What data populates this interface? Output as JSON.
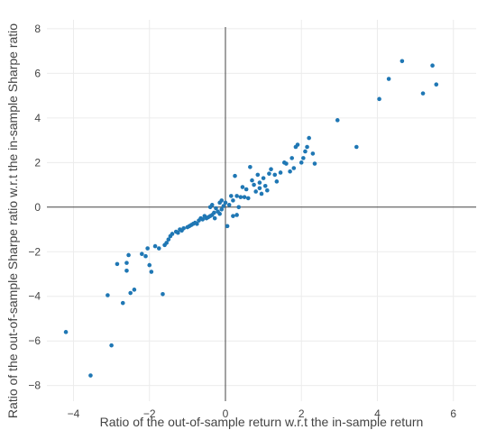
{
  "chart_data": {
    "type": "scatter",
    "xlabel": "Ratio of the out-of-sample return w.r.t the in-sample return",
    "ylabel": "Ratio of the out-of-sample Sharpe ratio w.r.t the in-sample Sharpe ratio",
    "xlim": [
      -4.7,
      6.6
    ],
    "ylim": [
      -8.7,
      8.4
    ],
    "xticks": [
      -4,
      -2,
      0,
      2,
      4,
      6
    ],
    "xtick_labels": [
      "−4",
      "−2",
      "0",
      "2",
      "4",
      "6"
    ],
    "yticks": [
      -8,
      -6,
      -4,
      -2,
      0,
      2,
      4,
      6,
      8
    ],
    "ytick_labels": [
      "−8",
      "−6",
      "−4",
      "−2",
      "0",
      "2",
      "4",
      "6",
      "8"
    ],
    "grid": true,
    "zero_lines": true,
    "legend": "none",
    "marker_color": "#1f77b4",
    "points": [
      [
        -4.2,
        -5.6
      ],
      [
        -3.55,
        -7.55
      ],
      [
        -3.0,
        -6.2
      ],
      [
        -3.1,
        -3.95
      ],
      [
        -2.7,
        -4.3
      ],
      [
        -2.5,
        -3.85
      ],
      [
        -2.4,
        -3.7
      ],
      [
        -1.65,
        -3.9
      ],
      [
        -2.85,
        -2.55
      ],
      [
        -2.6,
        -2.5
      ],
      [
        -2.55,
        -2.15
      ],
      [
        -2.6,
        -2.85
      ],
      [
        -2.2,
        -2.1
      ],
      [
        -2.1,
        -2.2
      ],
      [
        -2.0,
        -2.6
      ],
      [
        -1.95,
        -2.9
      ],
      [
        -2.05,
        -1.85
      ],
      [
        -1.85,
        -1.75
      ],
      [
        -1.75,
        -1.85
      ],
      [
        -1.6,
        -1.7
      ],
      [
        -1.5,
        -1.45
      ],
      [
        -1.55,
        -1.6
      ],
      [
        -1.45,
        -1.3
      ],
      [
        -1.4,
        -1.2
      ],
      [
        -1.3,
        -1.1
      ],
      [
        -1.25,
        -1.15
      ],
      [
        -1.2,
        -1.0
      ],
      [
        -1.15,
        -1.05
      ],
      [
        -1.1,
        -0.95
      ],
      [
        -1.0,
        -0.9
      ],
      [
        -0.95,
        -0.85
      ],
      [
        -0.9,
        -0.8
      ],
      [
        -0.85,
        -0.75
      ],
      [
        -0.8,
        -0.7
      ],
      [
        -0.75,
        -0.75
      ],
      [
        -0.7,
        -0.6
      ],
      [
        -0.65,
        -0.5
      ],
      [
        -0.6,
        -0.55
      ],
      [
        -0.55,
        -0.4
      ],
      [
        -0.5,
        -0.5
      ],
      [
        -0.45,
        -0.45
      ],
      [
        -0.4,
        -0.4
      ],
      [
        -0.35,
        -0.35
      ],
      [
        -0.3,
        -0.25
      ],
      [
        -0.28,
        -0.5
      ],
      [
        -0.2,
        -0.2
      ],
      [
        -0.15,
        -0.3
      ],
      [
        -0.1,
        -0.1
      ],
      [
        -0.05,
        0.05
      ],
      [
        -0.4,
        0.0
      ],
      [
        -0.35,
        0.1
      ],
      [
        -0.25,
        -0.05
      ],
      [
        -0.15,
        0.2
      ],
      [
        -0.1,
        0.3
      ],
      [
        0.0,
        0.2
      ],
      [
        0.05,
        -0.85
      ],
      [
        0.1,
        0.1
      ],
      [
        0.15,
        0.5
      ],
      [
        0.2,
        0.3
      ],
      [
        0.2,
        -0.4
      ],
      [
        0.3,
        0.5
      ],
      [
        0.3,
        -0.35
      ],
      [
        0.35,
        0.0
      ],
      [
        0.4,
        0.45
      ],
      [
        0.45,
        0.9
      ],
      [
        0.5,
        0.45
      ],
      [
        0.55,
        0.8
      ],
      [
        0.6,
        0.4
      ],
      [
        0.65,
        1.8
      ],
      [
        0.7,
        1.2
      ],
      [
        0.75,
        1.0
      ],
      [
        0.8,
        0.7
      ],
      [
        0.85,
        1.45
      ],
      [
        0.9,
        0.85
      ],
      [
        0.95,
        0.6
      ],
      [
        1.0,
        1.3
      ],
      [
        1.05,
        0.95
      ],
      [
        1.1,
        0.75
      ],
      [
        1.15,
        1.5
      ],
      [
        1.2,
        1.7
      ],
      [
        1.3,
        1.45
      ],
      [
        1.35,
        1.15
      ],
      [
        1.45,
        1.55
      ],
      [
        1.55,
        2.0
      ],
      [
        1.6,
        1.95
      ],
      [
        1.7,
        1.6
      ],
      [
        1.75,
        2.2
      ],
      [
        1.8,
        1.75
      ],
      [
        1.85,
        2.7
      ],
      [
        1.9,
        2.8
      ],
      [
        2.0,
        2.0
      ],
      [
        2.05,
        2.2
      ],
      [
        2.1,
        2.5
      ],
      [
        2.15,
        2.7
      ],
      [
        2.2,
        3.1
      ],
      [
        2.3,
        2.4
      ],
      [
        2.35,
        1.95
      ],
      [
        0.25,
        1.4
      ],
      [
        0.9,
        1.1
      ],
      [
        2.95,
        3.9
      ],
      [
        3.45,
        2.7
      ],
      [
        4.05,
        4.85
      ],
      [
        4.3,
        5.75
      ],
      [
        4.65,
        6.55
      ],
      [
        5.2,
        5.1
      ],
      [
        5.45,
        6.35
      ],
      [
        5.55,
        5.5
      ]
    ]
  }
}
